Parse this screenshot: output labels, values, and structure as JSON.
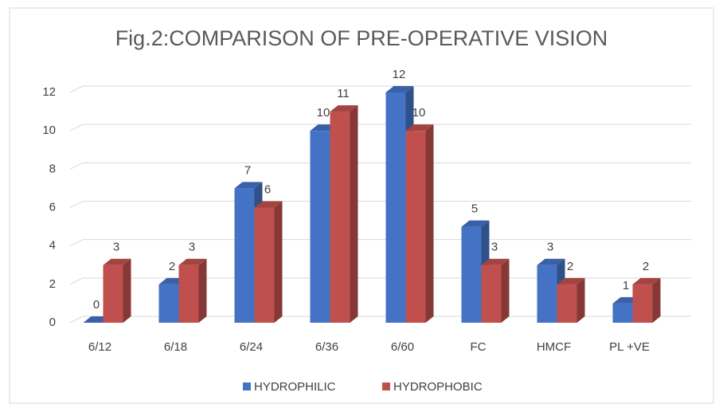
{
  "chart_data": {
    "type": "bar3d",
    "title": "Fig.2:COMPARISON OF PRE-OPERATIVE VISION",
    "categories": [
      "6/12",
      "6/18",
      "6/24",
      "6/36",
      "6/60",
      "FC",
      "HMCF",
      "PL +VE"
    ],
    "series": [
      {
        "name": "HYDROPHILIC",
        "color": "#4472c4",
        "values": [
          0,
          2,
          7,
          10,
          12,
          5,
          3,
          1
        ]
      },
      {
        "name": "HYDROPHOBIC",
        "color": "#c0504d",
        "values": [
          3,
          3,
          6,
          11,
          10,
          3,
          2,
          2
        ]
      }
    ],
    "ylim": [
      0,
      12
    ],
    "yticks": [
      0,
      2,
      4,
      6,
      8,
      10,
      12
    ],
    "grid": true,
    "legend": "bottom"
  }
}
